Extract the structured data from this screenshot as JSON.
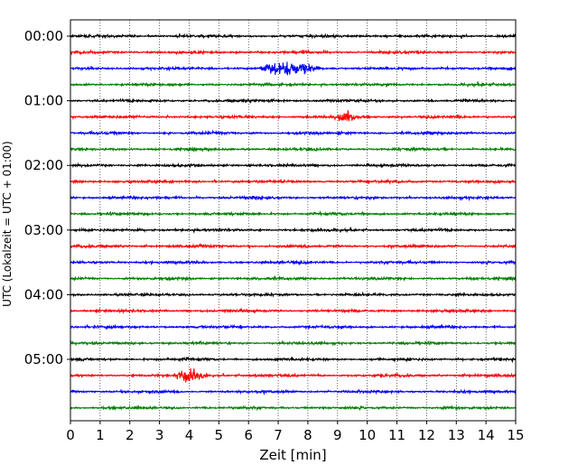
{
  "chart_data": {
    "type": "line",
    "subtype": "helicorder",
    "xlabel": "Zeit  [min]",
    "ylabel": "UTC (Lokalzeit = UTC + 01:00)",
    "xlim": [
      0,
      15
    ],
    "x_ticks": [
      0,
      1,
      2,
      3,
      4,
      5,
      6,
      7,
      8,
      9,
      10,
      11,
      12,
      13,
      14,
      15
    ],
    "x_tick_labels": [
      "0",
      "1",
      "2",
      "3",
      "4",
      "5",
      "6",
      "7",
      "8",
      "9",
      "10",
      "11",
      "12",
      "13",
      "14",
      "15"
    ],
    "vertical_grid": "dotted",
    "y_tick_labels": [
      "00:00",
      "01:00",
      "02:00",
      "03:00",
      "04:00",
      "05:00"
    ],
    "trace_interval_minutes": 15,
    "trace_count": 24,
    "trace_colors": [
      "#000000",
      "#ff0000",
      "#0000ff",
      "#008000"
    ],
    "events": [
      {
        "trace": 2,
        "minute_start": 6.4,
        "minute_end": 8.4,
        "peak_minute": 7.3
      },
      {
        "trace": 5,
        "minute_start": 8.9,
        "minute_end": 9.6,
        "peak_minute": 9.3
      },
      {
        "trace": 21,
        "minute_start": 3.6,
        "minute_end": 4.6,
        "peak_minute": 4.0
      }
    ]
  }
}
